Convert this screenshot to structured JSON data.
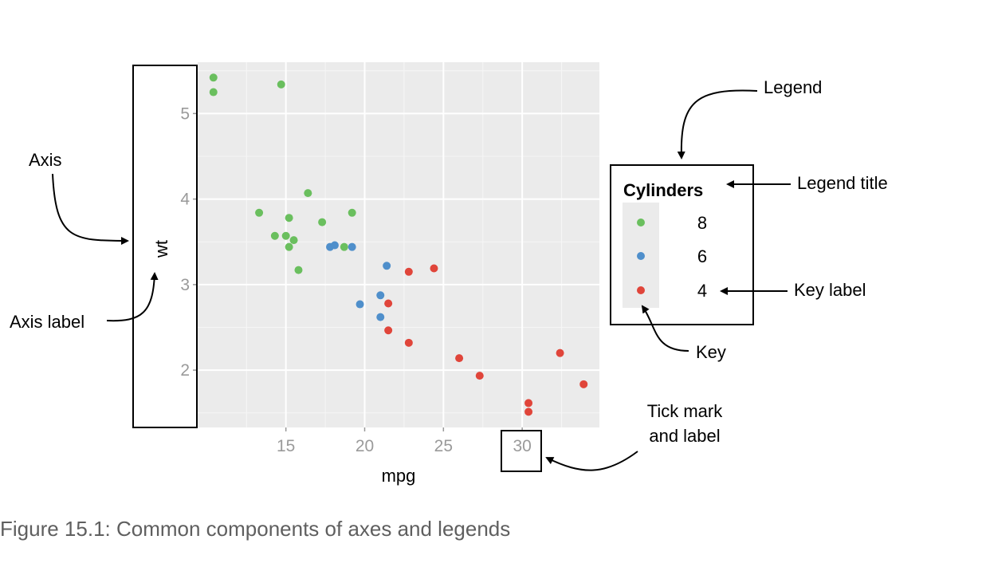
{
  "caption": "Figure 15.1: Common components of axes and legends",
  "chart_data": {
    "type": "scatter",
    "xlabel": "mpg",
    "ylabel": "wt",
    "xlim": [
      9.4,
      34.9
    ],
    "ylim": [
      1.33,
      5.6
    ],
    "xticks": [
      15,
      20,
      25,
      30
    ],
    "yticks": [
      2,
      3,
      4,
      5
    ],
    "grid": true,
    "legend": {
      "title": "Cylinders",
      "placement": "right",
      "entries": [
        {
          "label": "8",
          "color": "#6abf5e"
        },
        {
          "label": "6",
          "color": "#4f8fcb"
        },
        {
          "label": "4",
          "color": "#e0453a"
        }
      ]
    },
    "series": [
      {
        "name": "8",
        "color": "#6abf5e",
        "points": [
          [
            10.4,
            5.42
          ],
          [
            10.4,
            5.25
          ],
          [
            14.7,
            5.34
          ],
          [
            16.4,
            4.07
          ],
          [
            13.3,
            3.84
          ],
          [
            15.2,
            3.78
          ],
          [
            19.2,
            3.84
          ],
          [
            17.3,
            3.73
          ],
          [
            14.3,
            3.57
          ],
          [
            15.0,
            3.57
          ],
          [
            15.5,
            3.52
          ],
          [
            15.2,
            3.44
          ],
          [
            18.7,
            3.44
          ],
          [
            15.8,
            3.17
          ]
        ]
      },
      {
        "name": "6",
        "color": "#4f8fcb",
        "points": [
          [
            17.8,
            3.44
          ],
          [
            18.1,
            3.46
          ],
          [
            19.2,
            3.44
          ],
          [
            21.4,
            3.22
          ],
          [
            19.7,
            2.77
          ],
          [
            21.0,
            2.875
          ],
          [
            21.0,
            2.62
          ]
        ]
      },
      {
        "name": "4",
        "color": "#e0453a",
        "points": [
          [
            22.8,
            3.15
          ],
          [
            24.4,
            3.19
          ],
          [
            21.5,
            2.78
          ],
          [
            21.5,
            2.465
          ],
          [
            22.8,
            2.32
          ],
          [
            26.0,
            2.14
          ],
          [
            27.3,
            1.935
          ],
          [
            30.4,
            1.615
          ],
          [
            30.4,
            1.513
          ],
          [
            32.4,
            2.2
          ],
          [
            33.9,
            1.835
          ]
        ]
      }
    ]
  },
  "annotations": {
    "axis": "Axis",
    "axis_label": "Axis label",
    "legend": "Legend",
    "legend_title": "Legend title",
    "key_label": "Key label",
    "key": "Key",
    "tick_mark_line1": "Tick mark",
    "tick_mark_line2": "and label"
  }
}
